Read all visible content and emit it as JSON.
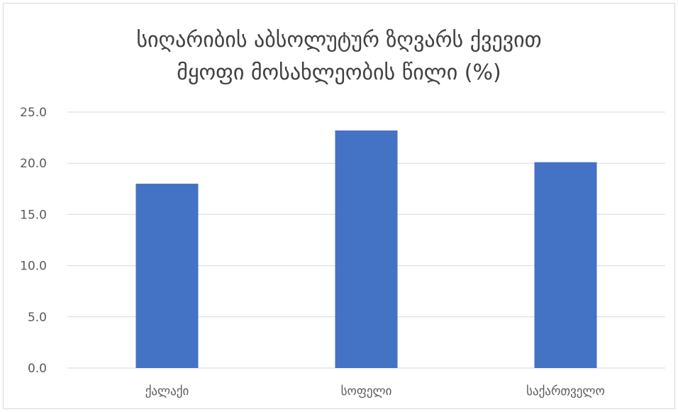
{
  "chart_data": {
    "type": "bar",
    "title_lines": [
      "სიღარიბის აბსოლუტურ ზღვარს ქვევით",
      "მყოფი მოსახლეობის წილი (%)"
    ],
    "categories": [
      "ქალაქი",
      "სოფელი",
      "საქართველო"
    ],
    "values": [
      18.0,
      23.2,
      20.1
    ],
    "ylim": [
      0,
      25
    ],
    "yticks": [
      "0.0",
      "5.0",
      "10.0",
      "15.0",
      "20.0",
      "25.0"
    ],
    "ytick_values": [
      0,
      5,
      10,
      15,
      20,
      25
    ],
    "grid": true,
    "legend": "none",
    "bar_color": "#4472c4"
  }
}
